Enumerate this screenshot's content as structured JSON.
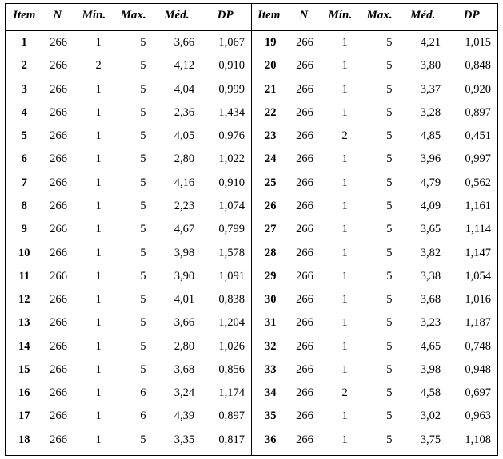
{
  "headers": {
    "item": "Item",
    "n": "N",
    "min": "Mín.",
    "max": "Max.",
    "med": "Méd.",
    "dp": "DP"
  },
  "left": [
    {
      "item": "1",
      "n": "266",
      "min": "1",
      "max": "5",
      "med": "3,66",
      "dp": "1,067"
    },
    {
      "item": "2",
      "n": "266",
      "min": "2",
      "max": "5",
      "med": "4,12",
      "dp": "0,910"
    },
    {
      "item": "3",
      "n": "266",
      "min": "1",
      "max": "5",
      "med": "4,04",
      "dp": "0,999"
    },
    {
      "item": "4",
      "n": "266",
      "min": "1",
      "max": "5",
      "med": "2,36",
      "dp": "1,434"
    },
    {
      "item": "5",
      "n": "266",
      "min": "1",
      "max": "5",
      "med": "4,05",
      "dp": "0,976"
    },
    {
      "item": "6",
      "n": "266",
      "min": "1",
      "max": "5",
      "med": "2,80",
      "dp": "1,022"
    },
    {
      "item": "7",
      "n": "266",
      "min": "1",
      "max": "5",
      "med": "4,16",
      "dp": "0,910"
    },
    {
      "item": "8",
      "n": "266",
      "min": "1",
      "max": "5",
      "med": "2,23",
      "dp": "1,074"
    },
    {
      "item": "9",
      "n": "266",
      "min": "1",
      "max": "5",
      "med": "4,67",
      "dp": "0,799"
    },
    {
      "item": "10",
      "n": "266",
      "min": "1",
      "max": "5",
      "med": "3,98",
      "dp": "1,578"
    },
    {
      "item": "11",
      "n": "266",
      "min": "1",
      "max": "5",
      "med": "3,90",
      "dp": "1,091"
    },
    {
      "item": "12",
      "n": "266",
      "min": "1",
      "max": "5",
      "med": "4,01",
      "dp": "0,838"
    },
    {
      "item": "13",
      "n": "266",
      "min": "1",
      "max": "5",
      "med": "3,66",
      "dp": "1,204"
    },
    {
      "item": "14",
      "n": "266",
      "min": "1",
      "max": "5",
      "med": "2,80",
      "dp": "1,026"
    },
    {
      "item": "15",
      "n": "266",
      "min": "1",
      "max": "5",
      "med": "3,68",
      "dp": "0,856"
    },
    {
      "item": "16",
      "n": "266",
      "min": "1",
      "max": "6",
      "med": "3,24",
      "dp": "1,174"
    },
    {
      "item": "17",
      "n": "266",
      "min": "1",
      "max": "6",
      "med": "4,39",
      "dp": "0,897"
    },
    {
      "item": "18",
      "n": "266",
      "min": "1",
      "max": "5",
      "med": "3,35",
      "dp": "0,817"
    }
  ],
  "right": [
    {
      "item": "19",
      "n": "266",
      "min": "1",
      "max": "5",
      "med": "4,21",
      "dp": "1,015"
    },
    {
      "item": "20",
      "n": "266",
      "min": "1",
      "max": "5",
      "med": "3,80",
      "dp": "0,848"
    },
    {
      "item": "21",
      "n": "266",
      "min": "1",
      "max": "5",
      "med": "3,37",
      "dp": "0,920"
    },
    {
      "item": "22",
      "n": "266",
      "min": "1",
      "max": "5",
      "med": "3,28",
      "dp": "0,897"
    },
    {
      "item": "23",
      "n": "266",
      "min": "2",
      "max": "5",
      "med": "4,85",
      "dp": "0,451"
    },
    {
      "item": "24",
      "n": "266",
      "min": "1",
      "max": "5",
      "med": "3,96",
      "dp": "0,997"
    },
    {
      "item": "25",
      "n": "266",
      "min": "1",
      "max": "5",
      "med": "4,79",
      "dp": "0,562"
    },
    {
      "item": "26",
      "n": "266",
      "min": "1",
      "max": "5",
      "med": "4,09",
      "dp": "1,161"
    },
    {
      "item": "27",
      "n": "266",
      "min": "1",
      "max": "5",
      "med": "3,65",
      "dp": "1,114"
    },
    {
      "item": "28",
      "n": "266",
      "min": "1",
      "max": "5",
      "med": "3,82",
      "dp": "1,147"
    },
    {
      "item": "29",
      "n": "266",
      "min": "1",
      "max": "5",
      "med": "3,38",
      "dp": "1,054"
    },
    {
      "item": "30",
      "n": "266",
      "min": "1",
      "max": "5",
      "med": "3,68",
      "dp": "1,016"
    },
    {
      "item": "31",
      "n": "266",
      "min": "1",
      "max": "5",
      "med": "3,23",
      "dp": "1,187"
    },
    {
      "item": "32",
      "n": "266",
      "min": "1",
      "max": "5",
      "med": "4,65",
      "dp": "0,748"
    },
    {
      "item": "33",
      "n": "266",
      "min": "1",
      "max": "5",
      "med": "3,98",
      "dp": "0,948"
    },
    {
      "item": "34",
      "n": "266",
      "min": "2",
      "max": "5",
      "med": "4,58",
      "dp": "0,697"
    },
    {
      "item": "35",
      "n": "266",
      "min": "1",
      "max": "5",
      "med": "3,02",
      "dp": "0,963"
    },
    {
      "item": "36",
      "n": "266",
      "min": "1",
      "max": "5",
      "med": "3,75",
      "dp": "1,108"
    }
  ]
}
